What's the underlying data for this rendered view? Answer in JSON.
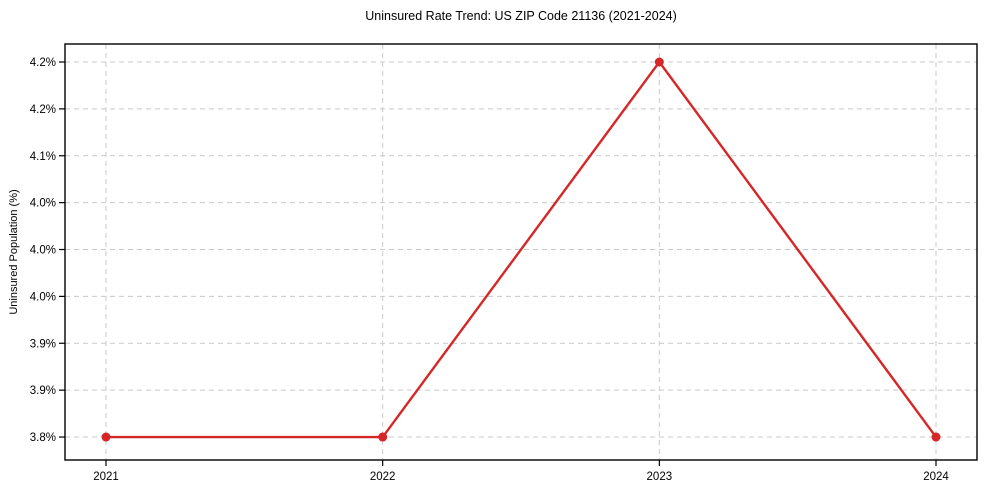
{
  "chart_data": {
    "type": "line",
    "title": "Uninsured Rate Trend: US ZIP Code 21136 (2021-2024)",
    "xlabel": "",
    "ylabel": "Uninsured Population (%)",
    "x": [
      "2021",
      "2022",
      "2023",
      "2024"
    ],
    "series": [
      {
        "values": [
          3.8,
          3.8,
          4.2,
          3.8
        ],
        "color": "#d62728",
        "marker": "circle"
      }
    ],
    "y_ticks": [
      3.8,
      3.85,
      3.9,
      3.95,
      4.0,
      4.05,
      4.1,
      4.15,
      4.2
    ],
    "y_tick_labels": [
      "3.8%",
      "3.9%",
      "3.9%",
      "4.0%",
      "4.0%",
      "4.0%",
      "4.1%",
      "4.2%",
      "4.2%"
    ],
    "ylim": [
      3.7755,
      4.2192
    ],
    "grid": true,
    "grid_style": "dashed",
    "grid_color": "#c9c9c9",
    "axis_color": "#000000",
    "tick_color": "#000000",
    "background": "#ffffff",
    "legend": "none"
  }
}
